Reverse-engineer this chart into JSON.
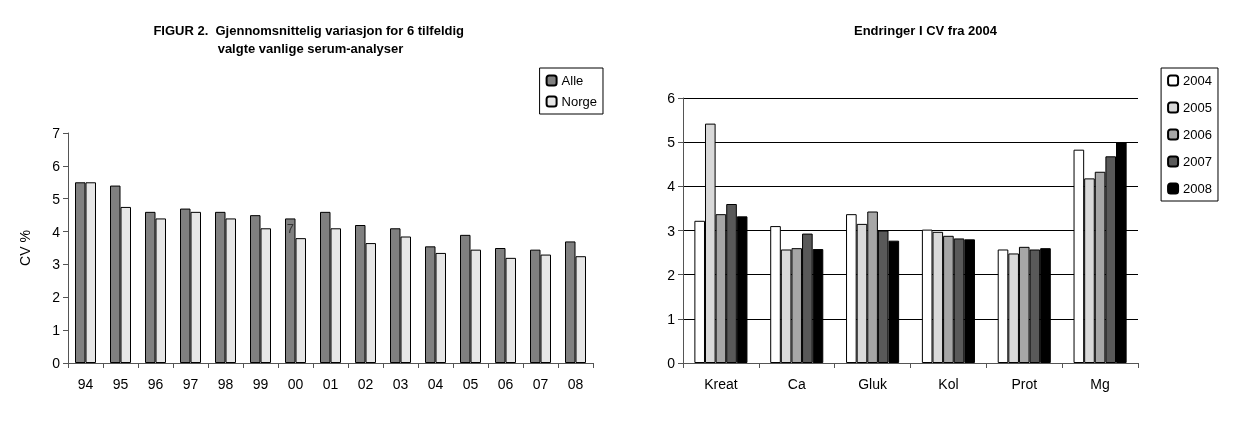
{
  "chart_data": [
    {
      "type": "bar",
      "title": "FIGUR 2.  Gjennomsnittelig variasjon for 6 tilfeldig valgte vanlige serum-analyser",
      "ylabel": "CV %",
      "categories": [
        "94",
        "95",
        "96",
        "97",
        "98",
        "99",
        "00",
        "01",
        "02",
        "03",
        "04",
        "05",
        "06",
        "07",
        "08"
      ],
      "series": [
        {
          "name": "Alle",
          "color": "#808080",
          "values": [
            5.5,
            5.4,
            4.6,
            4.7,
            4.6,
            4.5,
            4.4,
            4.6,
            4.2,
            4.1,
            3.55,
            3.9,
            3.5,
            3.45,
            3.7
          ]
        },
        {
          "name": "Norge",
          "color": "#e6e6e6",
          "values": [
            5.5,
            4.75,
            4.4,
            4.6,
            4.4,
            4.1,
            3.8,
            4.1,
            3.65,
            3.85,
            3.35,
            3.45,
            3.2,
            3.3,
            3.25
          ]
        }
      ],
      "ylim": [
        0,
        7
      ],
      "yticks": [
        0,
        1,
        2,
        3,
        4,
        5,
        6,
        7
      ],
      "grid": false,
      "legend": "top right",
      "annotations": [
        {
          "text": "7",
          "x": "00",
          "y": 4.1
        }
      ]
    },
    {
      "type": "bar",
      "title": "Endringer I CV fra 2004",
      "categories": [
        "Kreat",
        "Ca",
        "Gluk",
        "Kol",
        "Prot",
        "Mg"
      ],
      "series": [
        {
          "name": "2004",
          "color": "#ffffff",
          "values": [
            3.22,
            3.1,
            3.37,
            3.02,
            2.57,
            4.83
          ]
        },
        {
          "name": "2005",
          "color": "#d9d9d9",
          "values": [
            5.42,
            2.57,
            3.15,
            2.97,
            2.48,
            4.18
          ]
        },
        {
          "name": "2006",
          "color": "#a6a6a6",
          "values": [
            3.37,
            2.6,
            3.43,
            2.88,
            2.63,
            4.33
          ]
        },
        {
          "name": "2007",
          "color": "#595959",
          "values": [
            3.6,
            2.93,
            3.0,
            2.82,
            2.57,
            4.68
          ]
        },
        {
          "name": "2008",
          "color": "#000000",
          "values": [
            3.32,
            2.58,
            2.77,
            2.8,
            2.6,
            5.0
          ]
        }
      ],
      "ylim": [
        0,
        6
      ],
      "yticks": [
        0,
        1,
        2,
        3,
        4,
        5,
        6
      ],
      "grid": "y",
      "legend": "right"
    }
  ]
}
